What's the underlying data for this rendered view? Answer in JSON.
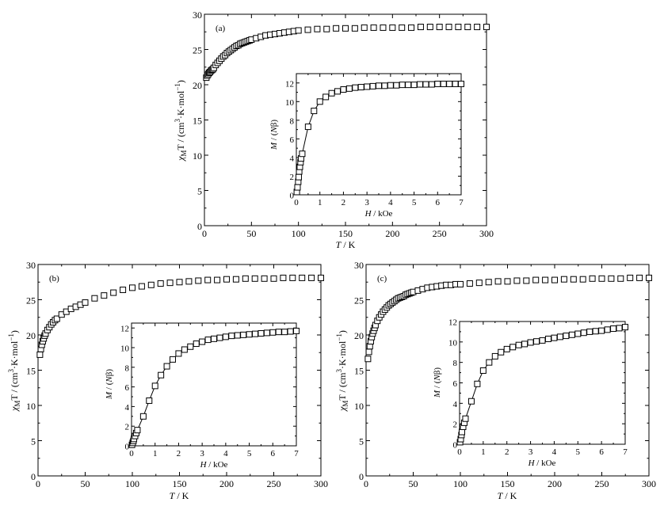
{
  "chart_data": [
    {
      "id": "a",
      "type": "scatter",
      "panel_label": "(a)",
      "xlabel": "T / K",
      "ylabel": "χMT / (cm³·K·mol⁻¹)",
      "xlim": [
        0,
        300
      ],
      "ylim": [
        0,
        30
      ],
      "xticks": [
        0,
        50,
        100,
        150,
        200,
        250,
        300
      ],
      "yticks": [
        0,
        5,
        10,
        15,
        20,
        25,
        30
      ],
      "marker": "open-square",
      "series": [
        {
          "x": [
            2,
            3,
            4,
            5,
            6,
            7,
            8,
            9,
            10,
            12,
            14,
            16,
            18,
            20,
            22,
            24,
            26,
            28,
            30,
            32,
            34,
            36,
            38,
            40,
            42,
            44,
            46,
            48,
            50,
            55,
            60,
            65,
            70,
            75,
            80,
            85,
            90,
            95,
            100,
            110,
            120,
            130,
            140,
            150,
            160,
            170,
            180,
            190,
            200,
            210,
            220,
            230,
            240,
            250,
            260,
            270,
            280,
            290,
            300
          ],
          "y": [
            21.0,
            21.3,
            21.5,
            21.7,
            21.8,
            22.0,
            22.1,
            22.2,
            22.4,
            22.8,
            23.1,
            23.4,
            23.7,
            24.0,
            24.2,
            24.5,
            24.7,
            24.9,
            25.1,
            25.3,
            25.5,
            25.6,
            25.8,
            25.9,
            26.0,
            26.1,
            26.2,
            26.3,
            26.4,
            26.6,
            26.8,
            27.0,
            27.1,
            27.2,
            27.3,
            27.4,
            27.5,
            27.6,
            27.7,
            27.8,
            27.9,
            27.9,
            28.0,
            28.0,
            28.0,
            28.1,
            28.1,
            28.1,
            28.1,
            28.1,
            28.1,
            28.2,
            28.2,
            28.2,
            28.2,
            28.2,
            28.2,
            28.2,
            28.2
          ]
        }
      ],
      "inset": {
        "type": "line",
        "xlabel": "H / kOe",
        "ylabel": "M / (Nβ)",
        "xlim": [
          0,
          7
        ],
        "ylim": [
          0,
          13
        ],
        "xticks": [
          0,
          1,
          2,
          3,
          4,
          5,
          6,
          7
        ],
        "yticks": [
          0,
          2,
          4,
          6,
          8,
          10,
          12
        ],
        "marker": "open-square",
        "series": [
          {
            "x": [
              0.02,
              0.05,
              0.08,
              0.1,
              0.12,
              0.15,
              0.18,
              0.2,
              0.25,
              0.5,
              0.75,
              1.0,
              1.25,
              1.5,
              1.75,
              2.0,
              2.25,
              2.5,
              2.75,
              3.0,
              3.25,
              3.5,
              3.75,
              4.0,
              4.25,
              4.5,
              4.75,
              5.0,
              5.25,
              5.5,
              5.75,
              6.0,
              6.25,
              6.5,
              6.75,
              7.0
            ],
            "y": [
              0.3,
              0.8,
              1.4,
              1.9,
              2.5,
              3.0,
              3.5,
              3.9,
              4.4,
              7.3,
              9.0,
              10.0,
              10.5,
              10.9,
              11.1,
              11.3,
              11.4,
              11.5,
              11.55,
              11.6,
              11.65,
              11.7,
              11.7,
              11.75,
              11.75,
              11.8,
              11.8,
              11.8,
              11.85,
              11.85,
              11.85,
              11.9,
              11.9,
              11.9,
              11.9,
              11.9
            ]
          }
        ]
      }
    },
    {
      "id": "b",
      "type": "scatter",
      "panel_label": "(b)",
      "xlabel": "T / K",
      "ylabel": "χMT / (cm³·K·mol⁻¹)",
      "xlim": [
        0,
        300
      ],
      "ylim": [
        0,
        30
      ],
      "xticks": [
        0,
        50,
        100,
        150,
        200,
        250,
        300
      ],
      "yticks": [
        0,
        5,
        10,
        15,
        20,
        25,
        30
      ],
      "marker": "open-square",
      "series": [
        {
          "x": [
            2,
            3,
            4,
            5,
            6,
            7,
            8,
            10,
            12,
            14,
            16,
            18,
            20,
            25,
            30,
            35,
            40,
            45,
            50,
            60,
            70,
            80,
            90,
            100,
            110,
            120,
            130,
            140,
            150,
            160,
            170,
            180,
            190,
            200,
            210,
            220,
            230,
            240,
            250,
            260,
            270,
            280,
            290,
            300
          ],
          "y": [
            17.2,
            18.0,
            18.6,
            19.1,
            19.5,
            19.9,
            20.2,
            20.7,
            21.1,
            21.5,
            21.8,
            22.1,
            22.3,
            22.9,
            23.3,
            23.7,
            24.0,
            24.3,
            24.6,
            25.2,
            25.6,
            26.0,
            26.4,
            26.7,
            26.9,
            27.1,
            27.3,
            27.4,
            27.5,
            27.6,
            27.7,
            27.8,
            27.8,
            27.9,
            27.9,
            28.0,
            28.0,
            28.0,
            28.0,
            28.1,
            28.1,
            28.1,
            28.1,
            28.1
          ]
        }
      ],
      "inset": {
        "type": "line",
        "xlabel": "H / kOe",
        "ylabel": "M / (Nβ)",
        "xlim": [
          0,
          7
        ],
        "ylim": [
          0,
          12.5
        ],
        "xticks": [
          0,
          1,
          2,
          3,
          4,
          5,
          6,
          7
        ],
        "yticks": [
          0,
          2,
          4,
          6,
          8,
          10,
          12
        ],
        "marker": "open-square",
        "series": [
          {
            "x": [
              0.02,
              0.05,
              0.08,
              0.1,
              0.15,
              0.2,
              0.25,
              0.5,
              0.75,
              1.0,
              1.25,
              1.5,
              1.75,
              2.0,
              2.25,
              2.5,
              2.75,
              3.0,
              3.25,
              3.5,
              3.75,
              4.0,
              4.25,
              4.5,
              4.75,
              5.0,
              5.25,
              5.5,
              5.75,
              6.0,
              6.25,
              6.5,
              6.75,
              7.0
            ],
            "y": [
              0.1,
              0.3,
              0.5,
              0.7,
              1.0,
              1.3,
              1.6,
              3.0,
              4.6,
              6.1,
              7.2,
              8.1,
              8.8,
              9.4,
              9.8,
              10.1,
              10.4,
              10.6,
              10.8,
              10.9,
              11.0,
              11.1,
              11.2,
              11.25,
              11.3,
              11.35,
              11.4,
              11.45,
              11.5,
              11.55,
              11.6,
              11.6,
              11.65,
              11.7
            ]
          }
        ]
      }
    },
    {
      "id": "c",
      "type": "scatter",
      "panel_label": "(c)",
      "xlabel": "T / K",
      "ylabel": "χMT / (cm³·K·mol⁻¹)",
      "xlim": [
        0,
        300
      ],
      "ylim": [
        0,
        30
      ],
      "xticks": [
        0,
        50,
        100,
        150,
        200,
        250,
        300
      ],
      "yticks": [
        0,
        5,
        10,
        15,
        20,
        25,
        30
      ],
      "marker": "open-square",
      "series": [
        {
          "x": [
            2,
            3,
            4,
            5,
            6,
            7,
            8,
            9,
            10,
            12,
            14,
            16,
            18,
            20,
            22,
            24,
            26,
            28,
            30,
            32,
            34,
            36,
            38,
            40,
            42,
            44,
            46,
            48,
            50,
            55,
            60,
            65,
            70,
            75,
            80,
            85,
            90,
            95,
            100,
            110,
            120,
            130,
            140,
            150,
            160,
            170,
            180,
            190,
            200,
            210,
            220,
            230,
            240,
            250,
            260,
            270,
            280,
            290,
            300
          ],
          "y": [
            16.6,
            17.6,
            18.4,
            19.1,
            19.7,
            20.2,
            20.6,
            21.0,
            21.4,
            22.0,
            22.5,
            22.9,
            23.3,
            23.6,
            23.9,
            24.2,
            24.4,
            24.6,
            24.8,
            25.0,
            25.2,
            25.3,
            25.4,
            25.5,
            25.7,
            25.8,
            25.9,
            26.0,
            26.1,
            26.3,
            26.5,
            26.7,
            26.8,
            26.9,
            27.0,
            27.1,
            27.1,
            27.2,
            27.2,
            27.3,
            27.4,
            27.5,
            27.6,
            27.6,
            27.7,
            27.7,
            27.8,
            27.8,
            27.8,
            27.9,
            27.9,
            27.9,
            28.0,
            28.0,
            28.0,
            28.0,
            28.1,
            28.1,
            28.1
          ]
        }
      ],
      "inset": {
        "type": "line",
        "xlabel": "H / kOe",
        "ylabel": "M / (Nβ)",
        "xlim": [
          0,
          7
        ],
        "ylim": [
          0,
          12
        ],
        "xticks": [
          0,
          1,
          2,
          3,
          4,
          5,
          6,
          7
        ],
        "yticks": [
          0,
          2,
          4,
          6,
          8,
          10,
          12
        ],
        "marker": "open-square",
        "series": [
          {
            "x": [
              0.02,
              0.05,
              0.08,
              0.1,
              0.15,
              0.2,
              0.25,
              0.5,
              0.75,
              1.0,
              1.25,
              1.5,
              1.75,
              2.0,
              2.25,
              2.5,
              2.75,
              3.0,
              3.25,
              3.5,
              3.75,
              4.0,
              4.25,
              4.5,
              4.75,
              5.0,
              5.25,
              5.5,
              5.75,
              6.0,
              6.25,
              6.5,
              6.75,
              7.0
            ],
            "y": [
              0.2,
              0.5,
              0.9,
              1.2,
              1.7,
              2.1,
              2.5,
              4.2,
              5.9,
              7.2,
              8.0,
              8.6,
              9.0,
              9.3,
              9.5,
              9.7,
              9.8,
              9.95,
              10.05,
              10.15,
              10.3,
              10.4,
              10.5,
              10.6,
              10.7,
              10.8,
              10.9,
              11.0,
              11.05,
              11.1,
              11.2,
              11.3,
              11.35,
              11.45
            ]
          }
        ]
      }
    }
  ]
}
